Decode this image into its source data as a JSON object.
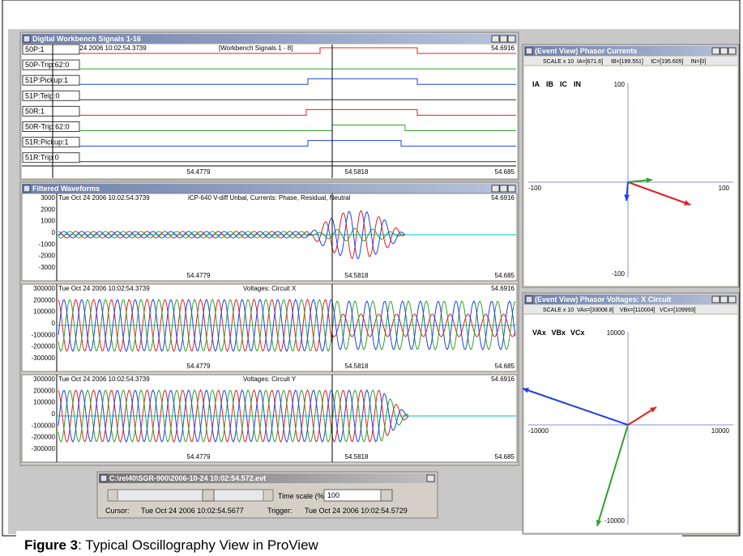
{
  "workbench": {
    "title": "Digital Workbench Signals 1-16",
    "timestamp": "Tue Oct 24 2006 10:02:54.3739",
    "subtitle": "[Workbench Signals 1 - 8]",
    "end_time": "54.6916",
    "signals": [
      "50P:1",
      "50P-Trip:62:0",
      "51P:Pickup:1",
      "51P:Teip:0",
      "50R:1",
      "50R-Trip:62:0",
      "51R:Pickup:1",
      "51R:Trip:0"
    ],
    "axis_labels": [
      "54.4779",
      "54.5818",
      "54.685"
    ]
  },
  "waveforms": {
    "title": "Filtered Waveforms",
    "panels": [
      {
        "timestamp": "Tue Oct 24 2006 10:02:54.3739",
        "title": "iCP-640 V-diff Unbal, Currents: Phase, Residual, Neutral",
        "end_time": "54.6916",
        "yticks": [
          "3000",
          "2000",
          "1000",
          "0",
          "-1000",
          "-2000",
          "-3000"
        ],
        "axis_labels": [
          "54.4779",
          "54.5818",
          "54.685"
        ]
      },
      {
        "timestamp": "Tue Oct 24 2006 10:02:54.3739",
        "title": "Voltages: Circuit X",
        "end_time": "54.6916",
        "yticks": [
          "300000",
          "200000",
          "100000",
          "0",
          "-100000",
          "-200000",
          "-300000"
        ],
        "axis_labels": [
          "54.4779",
          "54.5818",
          "54.685"
        ]
      },
      {
        "timestamp": "Tue Oct 24 2006 10:02:54.3739",
        "title": "Voltages: Circuit Y",
        "end_time": "54.6916",
        "yticks": [
          "300000",
          "200000",
          "100000",
          "0",
          "-100000",
          "-200000",
          "-300000"
        ],
        "axis_labels": [
          "54.4779",
          "54.5818",
          "54.685"
        ]
      }
    ]
  },
  "phasor_currents": {
    "title": "(Event View) Phasor Currents",
    "scale": "SCALE x 10",
    "readings": [
      "IA=[671.6]",
      "IB=[199.551]",
      "IC=[195.605]",
      "IN=[0]"
    ],
    "legend": [
      {
        "name": "IA",
        "color": "#e02020"
      },
      {
        "name": "IB",
        "color": "#30a030"
      },
      {
        "name": "IC",
        "color": "#2040e0"
      },
      {
        "name": "IN",
        "color": "#000000"
      }
    ],
    "axis": {
      "top": "100",
      "left": "-100",
      "right": "100",
      "bottom": "-100"
    }
  },
  "phasor_voltages": {
    "title": "(Event View) Phasor Voltages: X Circuit",
    "scale": "SCALE x 10",
    "readings": [
      "VAx=[33008.8]",
      "VBx=[110004]",
      "VCx=[109993]"
    ],
    "legend": [
      {
        "name": "VAx",
        "color": "#e02020"
      },
      {
        "name": "VBx",
        "color": "#30a030"
      },
      {
        "name": "VCx",
        "color": "#2040e0"
      }
    ],
    "axis": {
      "top": "10000",
      "left": "-10000",
      "right": "10000",
      "bottom": "-10000"
    }
  },
  "player": {
    "title": "C:\\rel40\\SGR-900\\2006-10-24 10:02:54.572.evt",
    "time_scale_label": "Time scale (%):",
    "time_scale_value": "100",
    "cursor_label": "Cursor:",
    "cursor_time": "Tue Oct 24 2006 10:02:54.5677",
    "trigger_label": "Trigger:",
    "trigger_time": "Tue Oct 24 2006 10:02:54.5729"
  },
  "caption": {
    "label": "Figure 3",
    "text": ": Typical Oscillography View in ProView"
  }
}
